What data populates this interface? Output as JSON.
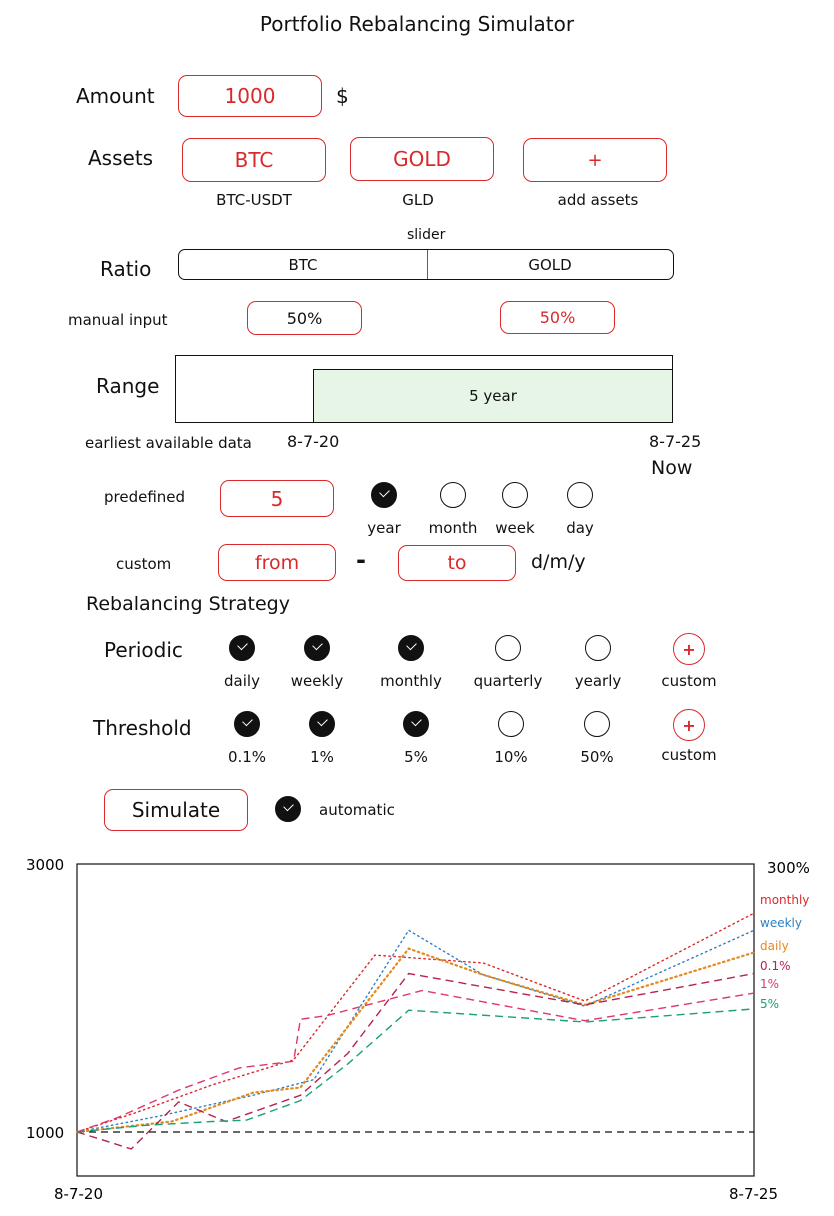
{
  "title": "Portfolio Rebalancing Simulator",
  "amount": {
    "label": "Amount",
    "value": "1000",
    "unit": "$"
  },
  "assets": {
    "label": "Assets",
    "items": [
      {
        "name": "BTC",
        "ticker": "BTC-USDT"
      },
      {
        "name": "GOLD",
        "ticker": "GLD"
      }
    ],
    "add_symbol": "+",
    "add_label": "add assets"
  },
  "ratio": {
    "label": "Ratio",
    "slider_caption": "slider",
    "left_label": "BTC",
    "right_label": "GOLD",
    "split": 0.5,
    "manual_label": "manual input",
    "left_value": "50%",
    "right_value": "50%"
  },
  "range": {
    "label": "Range",
    "selection_label": "5 year",
    "selected_fraction": 0.725,
    "earliest_label": "earliest available data",
    "start_date": "8-7-20",
    "end_date": "8-7-25",
    "end_caption": "Now"
  },
  "predefined": {
    "label": "predefined",
    "value": "5",
    "units": [
      {
        "label": "year",
        "checked": true
      },
      {
        "label": "month",
        "checked": false
      },
      {
        "label": "week",
        "checked": false
      },
      {
        "label": "day",
        "checked": false
      }
    ]
  },
  "custom_range": {
    "label": "custom",
    "from": "from",
    "separator": "-",
    "to": "to",
    "format": "d/m/y"
  },
  "strategy": {
    "heading": "Rebalancing Strategy",
    "periodic": {
      "label": "Periodic",
      "options": [
        {
          "label": "daily",
          "checked": true
        },
        {
          "label": "weekly",
          "checked": true
        },
        {
          "label": "monthly",
          "checked": true
        },
        {
          "label": "quarterly",
          "checked": false
        },
        {
          "label": "yearly",
          "checked": false
        }
      ],
      "custom_label": "custom"
    },
    "threshold": {
      "label": "Threshold",
      "options": [
        {
          "label": "0.1%",
          "checked": true
        },
        {
          "label": "1%",
          "checked": true
        },
        {
          "label": "5%",
          "checked": true
        },
        {
          "label": "10%",
          "checked": false
        },
        {
          "label": "50%",
          "checked": false
        }
      ],
      "custom_label": "custom"
    },
    "custom_symbol": "+"
  },
  "simulate": {
    "button_label": "Simulate",
    "auto_label": "automatic",
    "auto_checked": true
  },
  "chart_data": {
    "type": "line",
    "y_top_label": "3000",
    "y_bottom_label": "1000",
    "y_right_label": "300%",
    "x_start_label": "8-7-20",
    "x_end_label": "8-7-25",
    "ylim": [
      1000,
      3000
    ],
    "xlim": [
      0,
      5
    ],
    "baseline": 1000,
    "grid": false,
    "legend": "right",
    "series": [
      {
        "name": "monthly",
        "color": "#d9292b",
        "style": "dotted",
        "x": [
          0,
          0.44,
          1.0,
          1.6,
          2.2,
          3.0,
          3.75,
          5.0
        ],
        "y": [
          1000,
          1150,
          1360,
          1550,
          2350,
          2290,
          2000,
          2670
        ]
      },
      {
        "name": "weekly",
        "color": "#2f7fc4",
        "style": "dotted",
        "x": [
          0,
          0.6,
          1.3,
          1.75,
          2.45,
          3.0,
          3.75,
          5.0
        ],
        "y": [
          1000,
          1120,
          1280,
          1400,
          2540,
          2200,
          1960,
          2540
        ]
      },
      {
        "name": "daily",
        "color": "#e58a1d",
        "style": "dotted",
        "x": [
          0,
          0.7,
          1.3,
          1.65,
          2.45,
          3.0,
          3.75,
          5.0
        ],
        "y": [
          1000,
          1080,
          1300,
          1340,
          2400,
          2200,
          1970,
          2370
        ]
      },
      {
        "name": "0.1%",
        "color": "#b5234f",
        "style": "dashed",
        "x": [
          0,
          0.25,
          0.4,
          0.75,
          1.1,
          1.65,
          2.0,
          2.45,
          3.75,
          5.0
        ],
        "y": [
          1000,
          920,
          870,
          1230,
          1080,
          1280,
          1600,
          2210,
          1970,
          2210
        ]
      },
      {
        "name": "1%",
        "color": "#e0366f",
        "style": "dashed",
        "x": [
          0,
          0.3,
          0.75,
          1.2,
          1.6,
          1.65,
          1.85,
          2.55,
          3.75,
          5.0
        ],
        "y": [
          1000,
          1110,
          1320,
          1490,
          1540,
          1860,
          1890,
          2080,
          1850,
          2060
        ]
      },
      {
        "name": "5%",
        "color": "#1aa07b",
        "style": "dashed",
        "x": [
          0,
          0.5,
          1.0,
          1.25,
          1.65,
          2.0,
          2.45,
          3.75,
          5.0
        ],
        "y": [
          1000,
          1050,
          1080,
          1090,
          1240,
          1520,
          1930,
          1840,
          1940
        ]
      }
    ]
  }
}
